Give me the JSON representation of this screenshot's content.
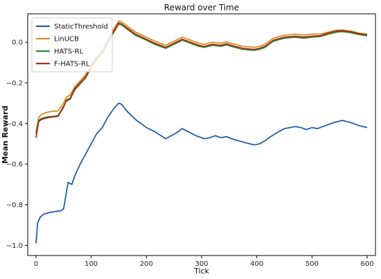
{
  "chart_data": {
    "type": "line",
    "title": "Reward over Time",
    "xlabel": "Tick",
    "ylabel": "Mean Reward",
    "xlim": [
      -15,
      615
    ],
    "ylim": [
      -1.05,
      0.14
    ],
    "xticks": [
      0,
      100,
      200,
      300,
      400,
      500,
      600
    ],
    "yticks": [
      -1.0,
      -0.8,
      -0.6,
      -0.4,
      -0.2,
      0.0
    ],
    "ytick_labels": [
      "−1.0",
      "−0.8",
      "−0.6",
      "−0.4",
      "−0.2",
      "0.0"
    ],
    "grid": false,
    "legend_position": "upper-left",
    "series": [
      {
        "name": "StaticThreshold",
        "color": "#1f5ea8",
        "points": [
          [
            0,
            -0.99
          ],
          [
            3,
            -0.89
          ],
          [
            8,
            -0.86
          ],
          [
            15,
            -0.845
          ],
          [
            25,
            -0.838
          ],
          [
            35,
            -0.833
          ],
          [
            45,
            -0.83
          ],
          [
            50,
            -0.82
          ],
          [
            58,
            -0.69
          ],
          [
            65,
            -0.7
          ],
          [
            70,
            -0.66
          ],
          [
            80,
            -0.6
          ],
          [
            90,
            -0.55
          ],
          [
            100,
            -0.5
          ],
          [
            110,
            -0.45
          ],
          [
            120,
            -0.42
          ],
          [
            130,
            -0.37
          ],
          [
            140,
            -0.33
          ],
          [
            150,
            -0.3
          ],
          [
            155,
            -0.305
          ],
          [
            165,
            -0.34
          ],
          [
            180,
            -0.38
          ],
          [
            200,
            -0.42
          ],
          [
            215,
            -0.44
          ],
          [
            235,
            -0.475
          ],
          [
            245,
            -0.46
          ],
          [
            255,
            -0.445
          ],
          [
            265,
            -0.425
          ],
          [
            275,
            -0.44
          ],
          [
            290,
            -0.46
          ],
          [
            305,
            -0.475
          ],
          [
            315,
            -0.47
          ],
          [
            325,
            -0.46
          ],
          [
            335,
            -0.47
          ],
          [
            345,
            -0.465
          ],
          [
            360,
            -0.48
          ],
          [
            380,
            -0.495
          ],
          [
            395,
            -0.505
          ],
          [
            405,
            -0.5
          ],
          [
            415,
            -0.485
          ],
          [
            425,
            -0.465
          ],
          [
            440,
            -0.44
          ],
          [
            450,
            -0.425
          ],
          [
            470,
            -0.415
          ],
          [
            480,
            -0.42
          ],
          [
            490,
            -0.43
          ],
          [
            500,
            -0.42
          ],
          [
            510,
            -0.425
          ],
          [
            520,
            -0.415
          ],
          [
            540,
            -0.395
          ],
          [
            555,
            -0.385
          ],
          [
            570,
            -0.395
          ],
          [
            585,
            -0.41
          ],
          [
            600,
            -0.42
          ]
        ]
      },
      {
        "name": "LinUCB",
        "color": "#d98a1c",
        "points": [
          [
            0,
            -0.44
          ],
          [
            5,
            -0.37
          ],
          [
            10,
            -0.355
          ],
          [
            20,
            -0.345
          ],
          [
            30,
            -0.34
          ],
          [
            40,
            -0.338
          ],
          [
            50,
            -0.3
          ],
          [
            55,
            -0.27
          ],
          [
            62,
            -0.26
          ],
          [
            70,
            -0.22
          ],
          [
            80,
            -0.19
          ],
          [
            90,
            -0.16
          ],
          [
            100,
            -0.11
          ],
          [
            110,
            -0.07
          ],
          [
            120,
            -0.04
          ],
          [
            130,
            0.01
          ],
          [
            140,
            0.06
          ],
          [
            150,
            0.105
          ],
          [
            155,
            0.1
          ],
          [
            165,
            0.08
          ],
          [
            180,
            0.05
          ],
          [
            200,
            0.025
          ],
          [
            215,
            0.005
          ],
          [
            235,
            -0.015
          ],
          [
            250,
            0.005
          ],
          [
            265,
            0.025
          ],
          [
            280,
            0.01
          ],
          [
            295,
            -0.005
          ],
          [
            305,
            -0.01
          ],
          [
            320,
            0.0
          ],
          [
            335,
            -0.005
          ],
          [
            345,
            0.002
          ],
          [
            360,
            -0.01
          ],
          [
            375,
            -0.02
          ],
          [
            395,
            -0.025
          ],
          [
            405,
            -0.02
          ],
          [
            415,
            -0.01
          ],
          [
            430,
            0.02
          ],
          [
            450,
            0.035
          ],
          [
            470,
            0.04
          ],
          [
            485,
            0.035
          ],
          [
            500,
            0.04
          ],
          [
            515,
            0.04
          ],
          [
            530,
            0.05
          ],
          [
            545,
            0.06
          ],
          [
            555,
            0.06
          ],
          [
            570,
            0.055
          ],
          [
            585,
            0.045
          ],
          [
            600,
            0.04
          ]
        ]
      },
      {
        "name": "HATS-RL",
        "color": "#2e8b2e",
        "points": [
          [
            0,
            -0.45
          ],
          [
            5,
            -0.385
          ],
          [
            10,
            -0.375
          ],
          [
            20,
            -0.368
          ],
          [
            30,
            -0.365
          ],
          [
            40,
            -0.362
          ],
          [
            50,
            -0.315
          ],
          [
            55,
            -0.29
          ],
          [
            62,
            -0.28
          ],
          [
            70,
            -0.235
          ],
          [
            80,
            -0.205
          ],
          [
            90,
            -0.175
          ],
          [
            100,
            -0.125
          ],
          [
            110,
            -0.085
          ],
          [
            120,
            -0.055
          ],
          [
            130,
            -0.005
          ],
          [
            140,
            0.045
          ],
          [
            150,
            0.09
          ],
          [
            155,
            0.085
          ],
          [
            165,
            0.065
          ],
          [
            180,
            0.035
          ],
          [
            200,
            0.01
          ],
          [
            215,
            -0.01
          ],
          [
            235,
            -0.03
          ],
          [
            250,
            -0.01
          ],
          [
            265,
            0.01
          ],
          [
            280,
            -0.005
          ],
          [
            295,
            -0.02
          ],
          [
            305,
            -0.025
          ],
          [
            320,
            -0.015
          ],
          [
            335,
            -0.02
          ],
          [
            345,
            -0.013
          ],
          [
            360,
            -0.025
          ],
          [
            375,
            -0.035
          ],
          [
            395,
            -0.04
          ],
          [
            405,
            -0.035
          ],
          [
            415,
            -0.025
          ],
          [
            430,
            0.005
          ],
          [
            450,
            0.02
          ],
          [
            470,
            0.025
          ],
          [
            485,
            0.02
          ],
          [
            500,
            0.025
          ],
          [
            515,
            0.028
          ],
          [
            530,
            0.04
          ],
          [
            545,
            0.05
          ],
          [
            555,
            0.052
          ],
          [
            570,
            0.047
          ],
          [
            585,
            0.038
          ],
          [
            600,
            0.032
          ]
        ]
      },
      {
        "name": "F-HATS-RL",
        "color": "#a52a18",
        "points": [
          [
            0,
            -0.47
          ],
          [
            5,
            -0.39
          ],
          [
            10,
            -0.38
          ],
          [
            20,
            -0.372
          ],
          [
            30,
            -0.368
          ],
          [
            40,
            -0.365
          ],
          [
            50,
            -0.32
          ],
          [
            55,
            -0.285
          ],
          [
            62,
            -0.275
          ],
          [
            70,
            -0.23
          ],
          [
            80,
            -0.2
          ],
          [
            90,
            -0.17
          ],
          [
            100,
            -0.12
          ],
          [
            110,
            -0.08
          ],
          [
            120,
            -0.05
          ],
          [
            130,
            0.0
          ],
          [
            140,
            0.05
          ],
          [
            150,
            0.095
          ],
          [
            155,
            0.09
          ],
          [
            165,
            0.07
          ],
          [
            180,
            0.04
          ],
          [
            200,
            0.015
          ],
          [
            215,
            -0.005
          ],
          [
            235,
            -0.025
          ],
          [
            250,
            -0.005
          ],
          [
            265,
            0.015
          ],
          [
            280,
            0.0
          ],
          [
            295,
            -0.015
          ],
          [
            305,
            -0.02
          ],
          [
            320,
            -0.01
          ],
          [
            335,
            -0.015
          ],
          [
            345,
            -0.008
          ],
          [
            360,
            -0.02
          ],
          [
            375,
            -0.03
          ],
          [
            395,
            -0.035
          ],
          [
            405,
            -0.03
          ],
          [
            415,
            -0.02
          ],
          [
            430,
            0.01
          ],
          [
            450,
            0.025
          ],
          [
            470,
            0.03
          ],
          [
            485,
            0.025
          ],
          [
            500,
            0.03
          ],
          [
            515,
            0.032
          ],
          [
            530,
            0.045
          ],
          [
            545,
            0.055
          ],
          [
            555,
            0.057
          ],
          [
            570,
            0.052
          ],
          [
            585,
            0.042
          ],
          [
            600,
            0.036
          ]
        ]
      }
    ]
  }
}
